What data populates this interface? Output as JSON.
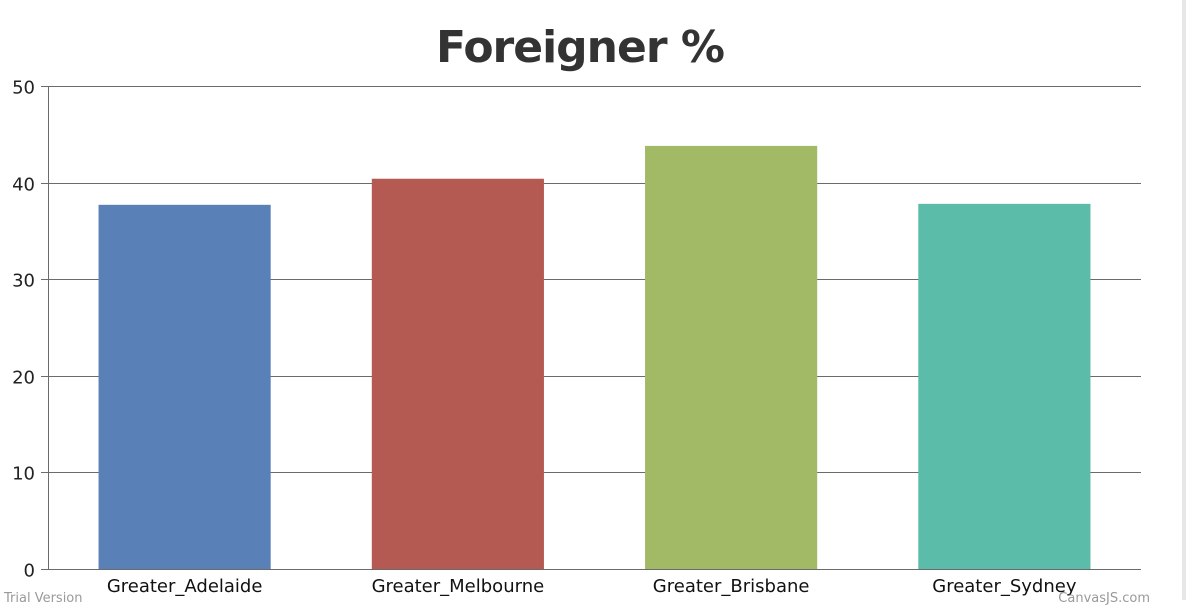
{
  "chart_data": {
    "type": "bar",
    "title": "Foreigner %",
    "categories": [
      "Greater_Adelaide",
      "Greater_Melbourne",
      "Greater_Brisbane",
      "Greater_Sydney"
    ],
    "values": [
      37.7,
      40.4,
      43.8,
      37.8
    ],
    "colors": [
      "#5a80b8",
      "#b55a52",
      "#a2b965",
      "#5bbca9"
    ],
    "xlabel": "",
    "ylabel": "",
    "ylim": [
      0,
      50
    ],
    "yticks": [
      0,
      10,
      20,
      30,
      40,
      50
    ],
    "grid": true,
    "legend": "none"
  },
  "watermark": {
    "left": "Trial Version",
    "right": "CanvasJS.com"
  }
}
